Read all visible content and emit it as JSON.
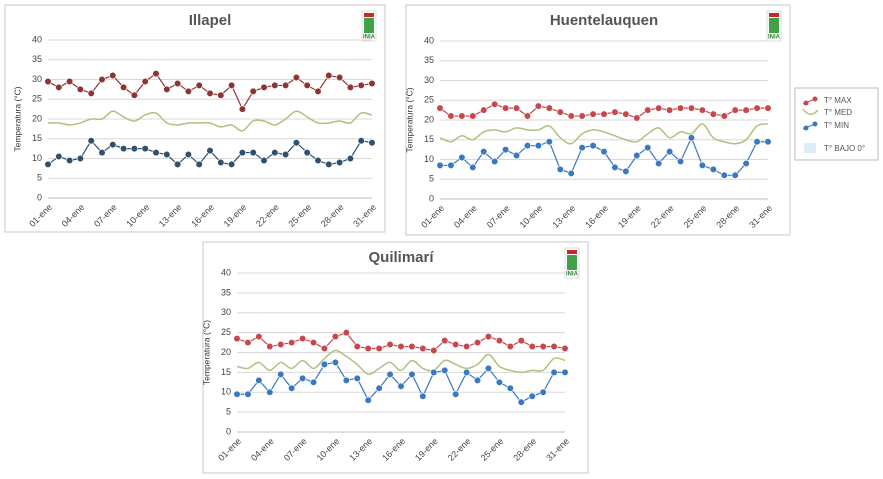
{
  "chart_data": [
    {
      "type": "line",
      "title": "Illapel",
      "logo": "INIA",
      "y_label": "Temperatura (°C)",
      "categories": [
        "01-ene",
        null,
        null,
        "04-ene",
        null,
        null,
        "07-ene",
        null,
        null,
        "10-ene",
        null,
        null,
        "13-ene",
        null,
        null,
        "16-ene",
        null,
        null,
        "19-ene",
        null,
        null,
        "22-ene",
        null,
        null,
        "25-ene",
        null,
        null,
        "28-ene",
        null,
        null,
        "31-ene"
      ],
      "ylim": [
        0,
        40
      ],
      "yticks": [
        0,
        5,
        10,
        15,
        20,
        25,
        30,
        35,
        40
      ],
      "grid": true,
      "series": [
        {
          "name": "T° MAX",
          "color": "#8e3434",
          "values": [
            29.5,
            28,
            29.5,
            27.5,
            26.5,
            30,
            31,
            28,
            26,
            29.5,
            31.5,
            27.5,
            29,
            27,
            28.5,
            26.5,
            26,
            28.5,
            22.5,
            27,
            28,
            28.5,
            28.5,
            30.5,
            28.5,
            27,
            31,
            30.5,
            28,
            28.5,
            29
          ]
        },
        {
          "name": "T° MED",
          "color": "#a9c47f",
          "values": [
            19,
            19,
            18.5,
            19,
            20,
            20,
            22,
            20.5,
            19.5,
            21,
            21.5,
            19,
            18.5,
            19,
            19,
            19,
            18,
            18.5,
            17,
            19.5,
            19.5,
            18.5,
            20,
            22,
            20.5,
            19,
            19,
            19.5,
            19,
            21.5,
            21
          ]
        },
        {
          "name": "T° MIN",
          "color": "#2f5170",
          "values": [
            8.5,
            10.5,
            9.5,
            10,
            14.5,
            11.5,
            13.5,
            12.5,
            12.5,
            12.5,
            11.5,
            11,
            8.5,
            11,
            8.5,
            12,
            9,
            8.5,
            11.5,
            11.5,
            9.5,
            11.5,
            11,
            14,
            11.5,
            9.5,
            8.5,
            9,
            10,
            14.5,
            14
          ]
        }
      ]
    },
    {
      "type": "line",
      "title": "Huentelauquen",
      "logo": "INIA",
      "y_label": "Temperatura (°C)",
      "categories": [
        "01-ene",
        null,
        null,
        "04-ene",
        null,
        null,
        "07-ene",
        null,
        null,
        "10-ene",
        null,
        null,
        "13-ene",
        null,
        null,
        "16-ene",
        null,
        null,
        "19-ene",
        null,
        null,
        "22-ene",
        null,
        null,
        "25-ene",
        null,
        null,
        "28-ene",
        null,
        null,
        "31-ene"
      ],
      "ylim": [
        0,
        40
      ],
      "yticks": [
        0,
        5,
        10,
        15,
        20,
        25,
        30,
        35,
        40
      ],
      "grid": true,
      "series": [
        {
          "name": "T° MAX",
          "color": "#c9474a",
          "values": [
            23,
            21,
            21,
            21,
            22.5,
            24,
            23,
            23,
            21,
            23.5,
            23,
            22,
            21,
            21,
            21.5,
            21.5,
            22,
            21.5,
            20.5,
            22.5,
            23,
            22.5,
            23,
            23,
            22.5,
            21.5,
            21,
            22.5,
            22.5,
            23,
            23
          ]
        },
        {
          "name": "T° MED",
          "color": "#a9c47f",
          "values": [
            15.5,
            14.5,
            16,
            15,
            17,
            17.5,
            17,
            18,
            17.5,
            17.5,
            18.5,
            15.5,
            14,
            16.5,
            17.5,
            17,
            16,
            15,
            14.5,
            16.5,
            18,
            15.5,
            17,
            16.5,
            19,
            15.5,
            14.5,
            14,
            15,
            18.5,
            19
          ]
        },
        {
          "name": "T° MIN",
          "color": "#3a78c2",
          "values": [
            8.5,
            8.5,
            10.5,
            8,
            12,
            9.5,
            12.5,
            11,
            13.5,
            13.5,
            14.5,
            7.5,
            6.5,
            13,
            13.5,
            12,
            8,
            7,
            11,
            13,
            9,
            12,
            9.5,
            15.5,
            8.5,
            7.5,
            6,
            6,
            9,
            14.5,
            14.5
          ]
        }
      ]
    },
    {
      "type": "line",
      "title": "Quilimarí",
      "logo": "INIA",
      "y_label": "Temperatura (°C)",
      "categories": [
        "01-ene",
        null,
        null,
        "04-ene",
        null,
        null,
        "07-ene",
        null,
        null,
        "10-ene",
        null,
        null,
        "13-ene",
        null,
        null,
        "16-ene",
        null,
        null,
        "19-ene",
        null,
        null,
        "22-ene",
        null,
        null,
        "25-ene",
        null,
        null,
        "28-ene",
        null,
        null,
        "31-ene"
      ],
      "ylim": [
        0,
        40
      ],
      "yticks": [
        0,
        5,
        10,
        15,
        20,
        25,
        30,
        35,
        40
      ],
      "grid": true,
      "series": [
        {
          "name": "T° MAX",
          "color": "#c9474a",
          "values": [
            23.5,
            22.5,
            24,
            21.5,
            22,
            22.5,
            23.5,
            22.5,
            21,
            24,
            25,
            21.5,
            21,
            21,
            22,
            21.5,
            21.5,
            21,
            20.5,
            23,
            22,
            21.5,
            22.5,
            24,
            23,
            21.5,
            23,
            21.5,
            21.5,
            21.5,
            21
          ]
        },
        {
          "name": "T° MED",
          "color": "#a9c47f",
          "values": [
            16.5,
            16,
            17.5,
            15.5,
            17.5,
            16,
            18,
            16,
            18.5,
            20.5,
            19,
            17,
            14.5,
            16,
            17.5,
            15.5,
            18,
            16,
            15.5,
            18,
            17,
            16,
            17,
            19.5,
            16.5,
            15.5,
            15,
            15.5,
            15.5,
            18.5,
            18
          ]
        },
        {
          "name": "T° MIN",
          "color": "#3a78c2",
          "values": [
            9.5,
            9.5,
            13,
            10,
            14.5,
            11,
            13.5,
            12.5,
            17,
            17.5,
            13,
            13.5,
            8,
            11,
            14.5,
            11.5,
            14.5,
            9,
            15,
            15.5,
            9.5,
            15,
            13,
            16,
            12.5,
            11,
            7.5,
            9,
            10,
            15,
            15
          ]
        }
      ]
    }
  ],
  "legend_extra": {
    "name": "T° BAJO 0°",
    "color": "#dbeef7"
  }
}
